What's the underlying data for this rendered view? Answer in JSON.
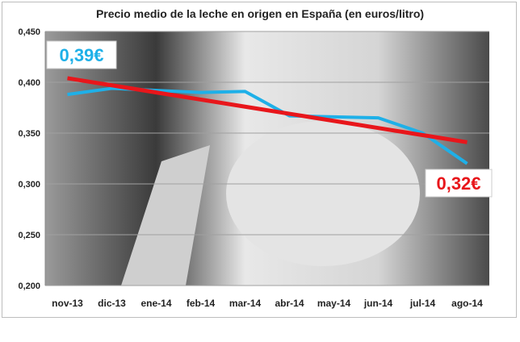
{
  "chart_data": {
    "type": "line",
    "title": "Precio medio de la leche en origen en España (en euros/litro)",
    "categories": [
      "nov-13",
      "dic-13",
      "ene-14",
      "feb-14",
      "mar-14",
      "abr-14",
      "may-14",
      "jun-14",
      "jul-14",
      "ago-14"
    ],
    "series": [
      {
        "values": [
          0.388,
          0.394,
          0.392,
          0.39,
          0.391,
          0.367,
          0.366,
          0.365,
          0.35,
          0.32
        ],
        "color": "#1eb0e8"
      },
      {
        "trendline": true,
        "values": [
          0.404,
          0.397,
          0.39,
          0.383,
          0.376,
          0.369,
          0.362,
          0.355,
          0.348,
          0.341
        ],
        "color": "#e8161b"
      }
    ],
    "yticks": [
      "0,200",
      "0,250",
      "0,300",
      "0,350",
      "0,400",
      "0,450"
    ],
    "ylim": [
      0.2,
      0.45
    ],
    "grid": true,
    "annotations": {
      "start": "0,39€",
      "end": "0,32€",
      "start_color": "#1eb0e8",
      "end_color": "#e8161b"
    },
    "background": "black-and-white cow udder photo"
  }
}
